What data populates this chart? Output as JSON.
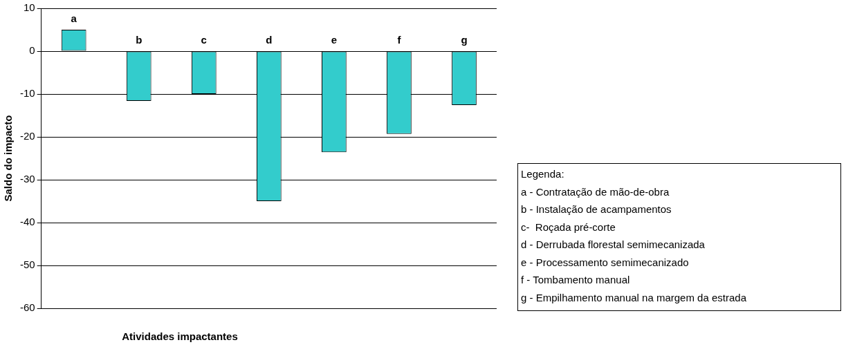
{
  "chart_data": {
    "type": "bar",
    "ylabel": "Saldo do impacto",
    "xlabel": "Atividades impactantes",
    "categories": [
      "a",
      "b",
      "c",
      "d",
      "e",
      "f",
      "g"
    ],
    "values": [
      5,
      -11.6,
      -10,
      -35,
      -23.6,
      -19.3,
      -12.6
    ],
    "color": "#33cccc",
    "ylim": [
      -60,
      10
    ],
    "yticks": [
      -60,
      -50,
      -40,
      -30,
      -20,
      -10,
      0,
      10
    ],
    "grid": "y",
    "legend": false,
    "annotations": [
      "Legenda:",
      "a - Contratação de mão-de-obra",
      "b - Instalação de acampamentos",
      "c-  Roçada pré-corte",
      "d - Derrubada florestal semimecanizada",
      "e - Processamento semimecanizado",
      "f - Tombamento manual",
      "g - Empilhamento manual na margem da estrada"
    ]
  }
}
